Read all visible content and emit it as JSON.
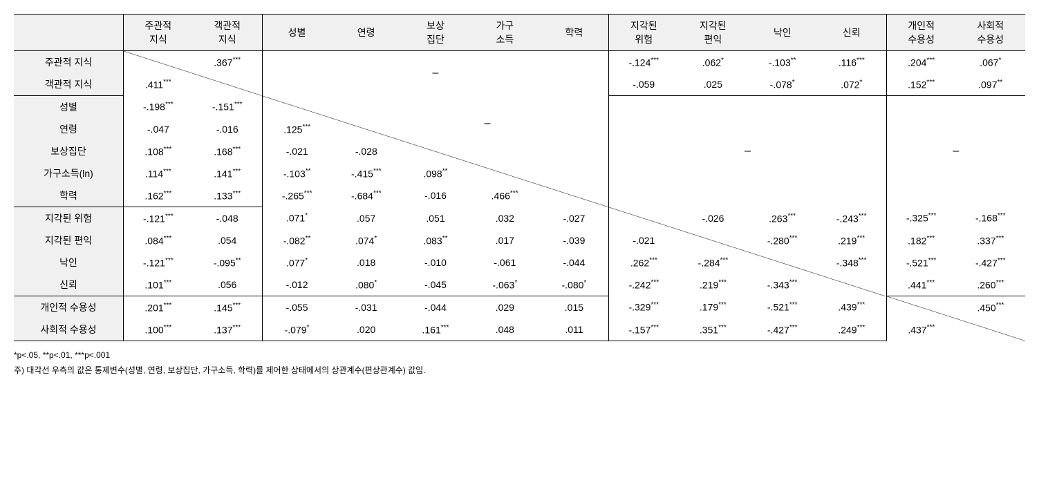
{
  "headers": {
    "c1": "주관적\n지식",
    "c2": "객관적\n지식",
    "c3": "성별",
    "c4": "연령",
    "c5": "보상\n집단",
    "c6": "가구\n소득",
    "c7": "학력",
    "c8": "지각된\n위험",
    "c9": "지각된\n편익",
    "c10": "낙인",
    "c11": "신뢰",
    "c12": "개인적\n수용성",
    "c13": "사회적\n수용성"
  },
  "rows": {
    "r1": "주관적 지식",
    "r2": "객관적 지식",
    "r3": "성별",
    "r4": "연령",
    "r5": "보상집단",
    "r6": "가구소득(ln)",
    "r7": "학력",
    "r8": "지각된 위험",
    "r9": "지각된 편익",
    "r10": "낙인",
    "r11": "신뢰",
    "r12": "개인적 수용성",
    "r13": "사회적 수용성"
  },
  "cells": {
    "r1c2": ".367***",
    "r1c8": "-.124***",
    "r1c9": ".062*",
    "r1c10": "-.103**",
    "r1c11": ".116***",
    "r1c12": ".204***",
    "r1c13": ".067*",
    "r2c1": ".411***",
    "r2c8": "-.059",
    "r2c9": ".025",
    "r2c10": "-.078*",
    "r2c11": ".072*",
    "r2c12": ".152***",
    "r2c13": ".097**",
    "r3c1": "-.198***",
    "r3c2": "-.151***",
    "r4c1": "-.047",
    "r4c2": "-.016",
    "r4c3": ".125***",
    "r5c1": ".108***",
    "r5c2": ".168***",
    "r5c3": "-.021",
    "r5c4": "-.028",
    "r6c1": ".114***",
    "r6c2": ".141***",
    "r6c3": "-.103**",
    "r6c4": "-.415***",
    "r6c5": ".098**",
    "r7c1": ".162***",
    "r7c2": ".133***",
    "r7c3": "-.265***",
    "r7c4": "-.684***",
    "r7c5": "-.016",
    "r7c6": ".466***",
    "r8c1": "-.121***",
    "r8c2": "-.048",
    "r8c3": ".071*",
    "r8c4": ".057",
    "r8c5": ".051",
    "r8c6": ".032",
    "r8c7": "-.027",
    "r8c9": "-.026",
    "r8c10": ".263***",
    "r8c11": "-.243***",
    "r8c12": "-.325***",
    "r8c13": "-.168***",
    "r9c1": ".084***",
    "r9c2": ".054",
    "r9c3": "-.082**",
    "r9c4": ".074*",
    "r9c5": ".083**",
    "r9c6": ".017",
    "r9c7": "-.039",
    "r9c8": "-.021",
    "r9c10": "-.280***",
    "r9c11": ".219***",
    "r9c12": ".182***",
    "r9c13": ".337***",
    "r10c1": "-.121***",
    "r10c2": "-.095**",
    "r10c3": ".077*",
    "r10c4": ".018",
    "r10c5": "-.010",
    "r10c6": "-.061",
    "r10c7": "-.044",
    "r10c8": ".262***",
    "r10c9": "-.284***",
    "r10c11": "-.348***",
    "r10c12": "-.521***",
    "r10c13": "-.427***",
    "r11c1": ".101***",
    "r11c2": ".056",
    "r11c3": "-.012",
    "r11c4": ".080*",
    "r11c5": "-.045",
    "r11c6": "-.063*",
    "r11c7": "-.080*",
    "r11c8": "-.242***",
    "r11c9": ".219***",
    "r11c10": "-.343***",
    "r11c12": ".441***",
    "r11c13": ".260***",
    "r12c1": ".201***",
    "r12c2": ".145***",
    "r12c3": "-.055",
    "r12c4": "-.031",
    "r12c5": "-.044",
    "r12c6": ".029",
    "r12c7": ".015",
    "r12c8": "-.329***",
    "r12c9": ".179***",
    "r12c10": "-.521***",
    "r12c11": ".439***",
    "r12c13": ".450***",
    "r13c1": ".100***",
    "r13c2": ".137***",
    "r13c3": "-.079*",
    "r13c4": ".020",
    "r13c5": ".161***",
    "r13c6": ".048",
    "r13c7": ".011",
    "r13c8": "-.157***",
    "r13c9": ".351***",
    "r13c10": "-.427***",
    "r13c11": ".249***",
    "r13c12": ".437***"
  },
  "dash": "–",
  "footnotes": {
    "f1": "*p<.05, **p<.01, ***p<.001",
    "f2": "주) 대각선 우측의 값은 통제변수(성별, 연령, 보상집단, 가구소득, 학력)를 제어한 상태에서의 상관계수(편상관계수) 값임."
  },
  "colors": {
    "header_bg": "#f0f0f0",
    "border": "#000000",
    "text": "#000000"
  }
}
